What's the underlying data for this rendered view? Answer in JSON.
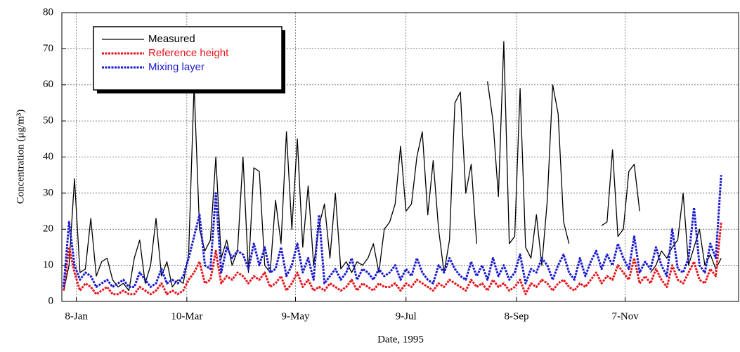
{
  "chart_data": {
    "type": "line",
    "x_label": "Date, 1995",
    "y_label": "Concentration (μg/m³)",
    "xlim": [
      0,
      374
    ],
    "xticks": [
      {
        "value": 8,
        "label": "8-Jan"
      },
      {
        "value": 69,
        "label": "10-Mar"
      },
      {
        "value": 129,
        "label": "9-May"
      },
      {
        "value": 190,
        "label": "9-Jul"
      },
      {
        "value": 251,
        "label": "8-Sep"
      },
      {
        "value": 311,
        "label": "7-Nov"
      }
    ],
    "ylim": [
      0,
      80
    ],
    "yticks": [
      0,
      10,
      20,
      30,
      40,
      50,
      60,
      70,
      80
    ],
    "grid": true,
    "legend": "upper left",
    "x": [
      1,
      4,
      7,
      10,
      13,
      16,
      19,
      22,
      25,
      28,
      31,
      34,
      37,
      40,
      43,
      46,
      49,
      52,
      55,
      58,
      61,
      64,
      67,
      70,
      73,
      76,
      79,
      82,
      85,
      88,
      91,
      94,
      97,
      100,
      103,
      106,
      109,
      112,
      115,
      118,
      121,
      124,
      127,
      130,
      133,
      136,
      139,
      142,
      145,
      148,
      151,
      154,
      157,
      160,
      163,
      166,
      169,
      172,
      175,
      178,
      181,
      184,
      187,
      190,
      193,
      196,
      199,
      202,
      205,
      208,
      211,
      214,
      217,
      220,
      223,
      226,
      229,
      232,
      235,
      238,
      241,
      244,
      247,
      250,
      253,
      256,
      259,
      262,
      265,
      268,
      271,
      274,
      277,
      280,
      283,
      286,
      289,
      292,
      295,
      298,
      301,
      304,
      307,
      310,
      313,
      316,
      319,
      322,
      325,
      328,
      331,
      334,
      337,
      340,
      343,
      346,
      349,
      352,
      355,
      358,
      361,
      364
    ],
    "series": [
      {
        "name": "Measured",
        "color": "#000000",
        "line_style": "solid",
        "values": [
          3,
          10,
          34,
          8,
          9,
          23,
          7,
          11,
          12,
          6,
          4,
          5,
          3,
          12,
          17,
          5,
          10,
          23,
          7,
          11,
          4,
          6,
          5,
          13,
          60,
          20,
          14,
          17,
          40,
          12,
          17,
          10,
          14,
          40,
          8,
          37,
          36,
          10,
          8,
          28,
          16,
          47,
          20,
          45,
          15,
          32,
          10,
          21,
          27,
          12,
          30,
          9,
          11,
          8,
          11,
          10,
          12,
          16,
          8,
          20,
          22,
          27,
          43,
          25,
          27,
          40,
          47,
          24,
          39,
          20,
          8,
          17,
          55,
          58,
          30,
          38,
          16,
          null,
          61,
          50,
          29,
          72,
          16,
          18,
          59,
          15,
          12,
          24,
          10,
          28,
          60,
          52,
          22,
          16,
          null,
          19,
          null,
          24,
          null,
          21,
          22,
          42,
          18,
          20,
          36,
          38,
          25,
          null,
          8,
          10,
          14,
          12,
          15,
          17,
          30,
          10,
          15,
          20,
          10,
          13,
          9,
          12
        ]
      },
      {
        "name": "Reference height",
        "color": "#e8141c",
        "line_style": "dashed",
        "values": [
          3,
          15,
          8,
          3,
          5,
          4,
          2,
          3,
          4,
          2,
          2,
          3,
          2,
          2,
          4,
          3,
          2,
          3,
          5,
          2,
          3,
          2,
          3,
          6,
          8,
          11,
          5,
          6,
          14,
          5,
          7,
          6,
          8,
          7,
          5,
          7,
          6,
          8,
          4,
          5,
          7,
          3,
          5,
          8,
          4,
          6,
          3,
          4,
          3,
          5,
          4,
          3,
          4,
          6,
          3,
          5,
          4,
          3,
          5,
          4,
          4,
          5,
          3,
          5,
          4,
          6,
          5,
          4,
          3,
          5,
          4,
          6,
          5,
          4,
          3,
          6,
          4,
          5,
          3,
          6,
          4,
          5,
          3,
          4,
          6,
          2,
          5,
          4,
          6,
          5,
          3,
          5,
          6,
          4,
          3,
          5,
          4,
          6,
          8,
          5,
          7,
          6,
          10,
          8,
          6,
          12,
          5,
          7,
          5,
          9,
          6,
          4,
          10,
          6,
          5,
          8,
          11,
          6,
          5,
          9,
          7,
          22
        ]
      },
      {
        "name": "Mixing layer",
        "color": "#1a1ad0",
        "line_style": "dashed",
        "values": [
          4,
          22,
          10,
          6,
          8,
          7,
          4,
          5,
          6,
          4,
          5,
          6,
          4,
          4,
          8,
          6,
          4,
          5,
          9,
          5,
          6,
          5,
          7,
          12,
          18,
          24,
          10,
          9,
          30,
          8,
          15,
          12,
          14,
          13,
          9,
          16,
          10,
          15,
          8,
          9,
          15,
          7,
          10,
          16,
          8,
          12,
          6,
          24,
          5,
          7,
          9,
          6,
          8,
          12,
          6,
          9,
          8,
          6,
          9,
          7,
          8,
          10,
          6,
          9,
          7,
          12,
          8,
          6,
          5,
          10,
          8,
          12,
          9,
          7,
          6,
          11,
          7,
          10,
          6,
          12,
          7,
          10,
          6,
          8,
          13,
          5,
          9,
          8,
          12,
          10,
          6,
          10,
          13,
          8,
          6,
          12,
          7,
          11,
          14,
          9,
          13,
          10,
          16,
          12,
          9,
          18,
          8,
          11,
          9,
          15,
          10,
          7,
          20,
          9,
          8,
          12,
          26,
          10,
          8,
          16,
          12,
          35
        ]
      }
    ]
  }
}
